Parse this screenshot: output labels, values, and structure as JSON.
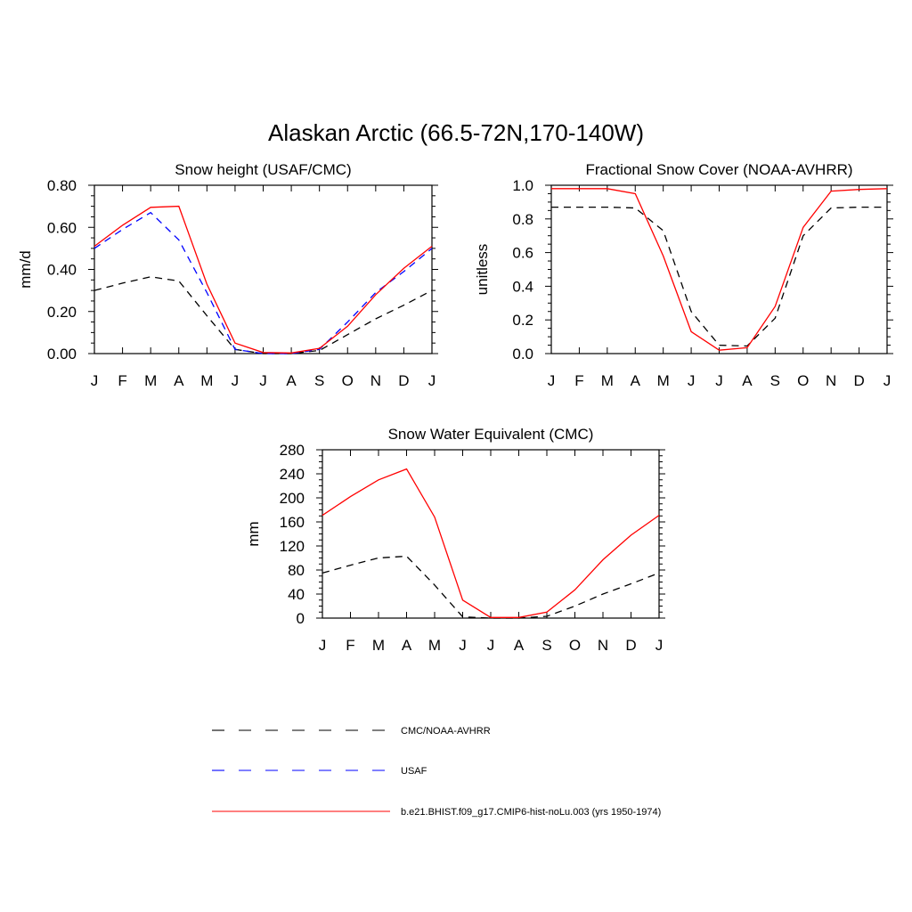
{
  "figure": {
    "title": "Alaskan Arctic (66.5-72N,170-140W)"
  },
  "month_labels": [
    "J",
    "F",
    "M",
    "A",
    "M",
    "J",
    "J",
    "A",
    "S",
    "O",
    "N",
    "D",
    "J"
  ],
  "legend": {
    "entries": [
      {
        "label": "CMC/NOAA-AVHRR",
        "color": "#000000",
        "dash": "dashed"
      },
      {
        "label": "USAF",
        "color": "#0000ff",
        "dash": "dashed"
      },
      {
        "label": "b.e21.BHIST.f09_g17.CMIP6-hist-noLu.003 (yrs 1950-1974)",
        "color": "#ff0000",
        "dash": "solid"
      }
    ]
  },
  "chart_data": [
    {
      "id": "snow-height",
      "type": "line",
      "title": "Snow height (USAF/CMC)",
      "ylabel": "mm/d",
      "xlabel": "",
      "categories": [
        "J",
        "F",
        "M",
        "A",
        "M",
        "J",
        "J",
        "A",
        "S",
        "O",
        "N",
        "D",
        "J"
      ],
      "ylim": [
        0,
        0.8
      ],
      "yticks": [
        0.0,
        0.2,
        0.4,
        0.6,
        0.8
      ],
      "ytick_labels": [
        "0.00",
        "0.20",
        "0.40",
        "0.60",
        "0.80"
      ],
      "grid": false,
      "series": [
        {
          "name": "CMC/NOAA-AVHRR",
          "color": "#000000",
          "dash": "dashed",
          "values": [
            0.3,
            0.335,
            0.365,
            0.345,
            0.18,
            0.02,
            0.0,
            0.0,
            0.015,
            0.09,
            0.165,
            0.23,
            0.3
          ]
        },
        {
          "name": "USAF",
          "color": "#0000ff",
          "dash": "dashed",
          "values": [
            0.5,
            0.59,
            0.67,
            0.54,
            0.29,
            0.02,
            0.0,
            0.0,
            0.02,
            0.15,
            0.29,
            0.39,
            0.5
          ]
        },
        {
          "name": "b.e21.BHIST.f09_g17.CMIP6-hist-noLu.003 (yrs 1950-1974)",
          "color": "#ff0000",
          "dash": "solid",
          "values": [
            0.51,
            0.61,
            0.695,
            0.7,
            0.33,
            0.05,
            0.005,
            0.003,
            0.025,
            0.13,
            0.28,
            0.405,
            0.51
          ]
        }
      ]
    },
    {
      "id": "snow-cover",
      "type": "line",
      "title": "Fractional Snow Cover (NOAA-AVHRR)",
      "ylabel": "unitless",
      "xlabel": "",
      "categories": [
        "J",
        "F",
        "M",
        "A",
        "M",
        "J",
        "J",
        "A",
        "S",
        "O",
        "N",
        "D",
        "J"
      ],
      "ylim": [
        0,
        1.0
      ],
      "yticks": [
        0.0,
        0.2,
        0.4,
        0.6,
        0.8,
        1.0
      ],
      "ytick_labels": [
        "0.0",
        "0.2",
        "0.4",
        "0.6",
        "0.8",
        "1.0"
      ],
      "grid": false,
      "series": [
        {
          "name": "CMC/NOAA-AVHRR",
          "color": "#000000",
          "dash": "dashed",
          "values": [
            0.87,
            0.87,
            0.87,
            0.865,
            0.73,
            0.25,
            0.05,
            0.045,
            0.21,
            0.7,
            0.865,
            0.87,
            0.87
          ]
        },
        {
          "name": "b.e21.BHIST.f09_g17.CMIP6-hist-noLu.003 (yrs 1950-1974)",
          "color": "#ff0000",
          "dash": "solid",
          "values": [
            0.98,
            0.98,
            0.98,
            0.95,
            0.58,
            0.13,
            0.02,
            0.035,
            0.28,
            0.75,
            0.965,
            0.975,
            0.98
          ]
        }
      ]
    },
    {
      "id": "swe",
      "type": "line",
      "title": "Snow Water Equivalent (CMC)",
      "ylabel": "mm",
      "xlabel": "",
      "categories": [
        "J",
        "F",
        "M",
        "A",
        "M",
        "J",
        "J",
        "A",
        "S",
        "O",
        "N",
        "D",
        "J"
      ],
      "ylim": [
        0,
        280
      ],
      "yticks": [
        0,
        40,
        80,
        120,
        160,
        200,
        240,
        280
      ],
      "ytick_labels": [
        "0",
        "40",
        "80",
        "120",
        "160",
        "200",
        "240",
        "280"
      ],
      "grid": false,
      "series": [
        {
          "name": "CMC/NOAA-AVHRR",
          "color": "#000000",
          "dash": "dashed",
          "values": [
            75,
            88,
            100,
            103,
            55,
            2,
            0,
            0,
            3,
            20,
            40,
            57,
            75
          ]
        },
        {
          "name": "b.e21.BHIST.f09_g17.CMIP6-hist-noLu.003 (yrs 1950-1974)",
          "color": "#ff0000",
          "dash": "solid",
          "values": [
            171,
            202,
            230,
            248,
            168,
            30,
            1,
            1,
            10,
            47,
            97,
            138,
            171
          ]
        }
      ]
    }
  ]
}
